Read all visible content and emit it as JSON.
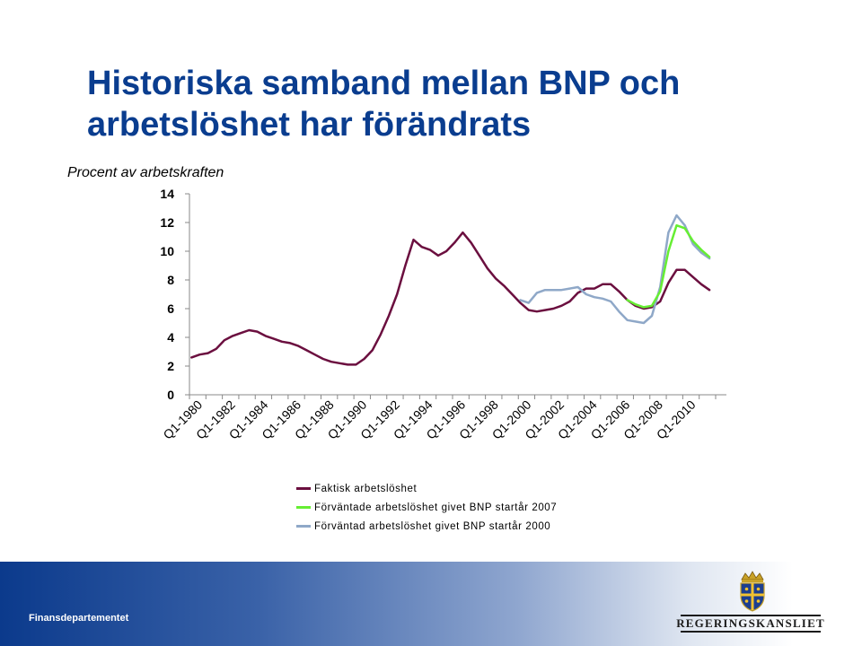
{
  "slide": {
    "title": "Historiska samband mellan BNP och arbetslöshet har förändrats",
    "footer": "Finansdepartementet",
    "logo_text": "REGERINGSKANSLIET"
  },
  "chart_data": {
    "type": "line",
    "title": "",
    "ylabel": "Procent av arbetskraften",
    "xlabel": "",
    "ylim": [
      0,
      14
    ],
    "yticks": [
      0,
      2,
      4,
      6,
      8,
      10,
      12,
      14
    ],
    "xticks": [
      "Q1-1980",
      "Q1-1982",
      "Q1-1984",
      "Q1-1986",
      "Q1-1988",
      "Q1-1990",
      "Q1-1992",
      "Q1-1994",
      "Q1-1996",
      "Q1-1998",
      "Q1-2000",
      "Q1-2002",
      "Q1-2004",
      "Q1-2006",
      "Q1-2008",
      "Q1-2010"
    ],
    "grid": false,
    "legend_position": "bottom",
    "series": [
      {
        "name": "Faktisk arbetslöshet",
        "color": "#6b0f3f",
        "points": [
          [
            "1980Q1",
            2.6
          ],
          [
            "1980Q3",
            2.8
          ],
          [
            "1981Q1",
            2.9
          ],
          [
            "1981Q3",
            3.2
          ],
          [
            "1982Q1",
            3.8
          ],
          [
            "1982Q3",
            4.1
          ],
          [
            "1983Q1",
            4.3
          ],
          [
            "1983Q3",
            4.5
          ],
          [
            "1984Q1",
            4.4
          ],
          [
            "1984Q3",
            4.1
          ],
          [
            "1985Q1",
            3.9
          ],
          [
            "1985Q3",
            3.7
          ],
          [
            "1986Q1",
            3.6
          ],
          [
            "1986Q3",
            3.4
          ],
          [
            "1987Q1",
            3.1
          ],
          [
            "1987Q3",
            2.8
          ],
          [
            "1988Q1",
            2.5
          ],
          [
            "1988Q3",
            2.3
          ],
          [
            "1989Q1",
            2.2
          ],
          [
            "1989Q3",
            2.1
          ],
          [
            "1990Q1",
            2.1
          ],
          [
            "1990Q3",
            2.5
          ],
          [
            "1991Q1",
            3.1
          ],
          [
            "1991Q3",
            4.2
          ],
          [
            "1992Q1",
            5.5
          ],
          [
            "1992Q3",
            7.0
          ],
          [
            "1993Q1",
            9.0
          ],
          [
            "1993Q3",
            10.8
          ],
          [
            "1994Q1",
            10.3
          ],
          [
            "1994Q3",
            10.1
          ],
          [
            "1995Q1",
            9.7
          ],
          [
            "1995Q3",
            10.0
          ],
          [
            "1996Q1",
            10.6
          ],
          [
            "1996Q3",
            11.3
          ],
          [
            "1997Q1",
            10.6
          ],
          [
            "1997Q3",
            9.7
          ],
          [
            "1998Q1",
            8.8
          ],
          [
            "1998Q3",
            8.1
          ],
          [
            "1999Q1",
            7.6
          ],
          [
            "1999Q3",
            7.0
          ],
          [
            "2000Q1",
            6.4
          ],
          [
            "2000Q3",
            5.9
          ],
          [
            "2001Q1",
            5.8
          ],
          [
            "2001Q3",
            5.9
          ],
          [
            "2002Q1",
            6.0
          ],
          [
            "2002Q3",
            6.2
          ],
          [
            "2003Q1",
            6.5
          ],
          [
            "2003Q3",
            7.1
          ],
          [
            "2004Q1",
            7.4
          ],
          [
            "2004Q3",
            7.4
          ],
          [
            "2005Q1",
            7.7
          ],
          [
            "2005Q3",
            7.7
          ],
          [
            "2006Q1",
            7.2
          ],
          [
            "2006Q3",
            6.6
          ],
          [
            "2007Q1",
            6.2
          ],
          [
            "2007Q3",
            6.0
          ],
          [
            "2008Q1",
            6.1
          ],
          [
            "2008Q3",
            6.5
          ],
          [
            "2009Q1",
            7.8
          ],
          [
            "2009Q3",
            8.7
          ],
          [
            "2010Q1",
            8.7
          ],
          [
            "2010Q3",
            8.2
          ],
          [
            "2011Q1",
            7.7
          ],
          [
            "2011Q3",
            7.3
          ]
        ]
      },
      {
        "name": "Förväntade arbetslöshet givet BNP startår 2007",
        "color": "#66ee33",
        "points": [
          [
            "2006Q3",
            6.6
          ],
          [
            "2007Q1",
            6.3
          ],
          [
            "2007Q3",
            6.1
          ],
          [
            "2008Q1",
            6.2
          ],
          [
            "2008Q3",
            7.2
          ],
          [
            "2009Q1",
            10.0
          ],
          [
            "2009Q3",
            11.8
          ],
          [
            "2010Q1",
            11.6
          ],
          [
            "2010Q3",
            10.7
          ],
          [
            "2011Q1",
            10.1
          ],
          [
            "2011Q3",
            9.6
          ]
        ]
      },
      {
        "name": "Förväntad arbetslöshet givet BNP startår 2000",
        "color": "#8fa8c8",
        "points": [
          [
            "2000Q1",
            6.6
          ],
          [
            "2000Q3",
            6.4
          ],
          [
            "2001Q1",
            7.1
          ],
          [
            "2001Q3",
            7.3
          ],
          [
            "2002Q1",
            7.3
          ],
          [
            "2002Q3",
            7.3
          ],
          [
            "2003Q1",
            7.4
          ],
          [
            "2003Q3",
            7.5
          ],
          [
            "2004Q1",
            7.0
          ],
          [
            "2004Q3",
            6.8
          ],
          [
            "2005Q1",
            6.7
          ],
          [
            "2005Q3",
            6.5
          ],
          [
            "2006Q1",
            5.8
          ],
          [
            "2006Q3",
            5.2
          ],
          [
            "2007Q1",
            5.1
          ],
          [
            "2007Q3",
            5.0
          ],
          [
            "2008Q1",
            5.5
          ],
          [
            "2008Q3",
            7.5
          ],
          [
            "2009Q1",
            11.3
          ],
          [
            "2009Q3",
            12.5
          ],
          [
            "2010Q1",
            11.8
          ],
          [
            "2010Q3",
            10.5
          ],
          [
            "2011Q1",
            9.9
          ],
          [
            "2011Q3",
            9.5
          ]
        ]
      }
    ]
  }
}
